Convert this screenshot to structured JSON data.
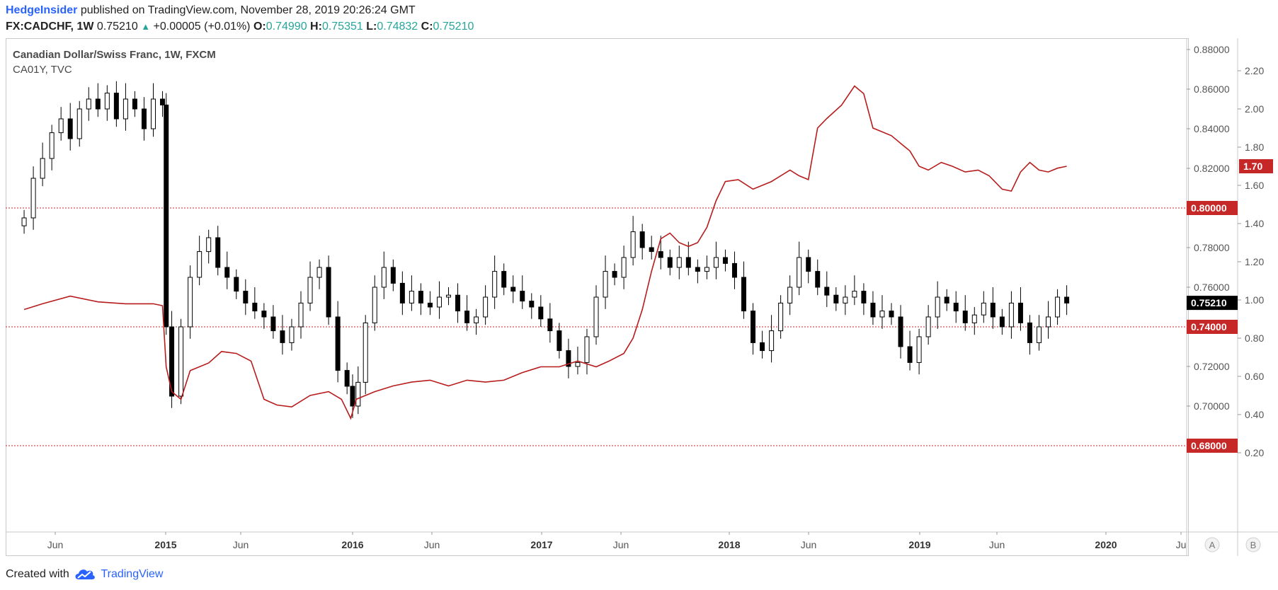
{
  "header": {
    "author": "HedgeInsider",
    "published": "published on TradingView.com, November 28, 2019 20:26:24 GMT",
    "symbol": "FX:CADCHF, 1W",
    "last": "0.75210",
    "change_arrow": "▲",
    "change": "+0.00005 (+0.01%)",
    "o_label": "O:",
    "o": "0.74990",
    "h_label": "H:",
    "h": "0.75351",
    "l_label": "L:",
    "l": "0.74832",
    "c_label": "C:",
    "c": "0.75210"
  },
  "chart_data": {
    "type": "line",
    "title": "Canadian Dollar/Swiss Franc, 1W, FXCM",
    "subtitle": "CA01Y, TVC",
    "x_ticks": [
      "Jun",
      "2015",
      "Jun",
      "2016",
      "Jun",
      "2017",
      "Jun",
      "2018",
      "Jun",
      "2019",
      "Jun",
      "2020",
      "Ju"
    ],
    "bold_x_ticks": [
      "2015",
      "2016",
      "2017",
      "2018",
      "2019",
      "2020"
    ],
    "scale_a": {
      "ticks": [
        "0.88000",
        "0.86000",
        "0.84000",
        "0.82000",
        "0.80000",
        "0.78000",
        "0.76000",
        "0.74000",
        "0.72000",
        "0.70000",
        "0.68000"
      ]
    },
    "scale_b": {
      "ticks": [
        "2.20",
        "2.00",
        "1.80",
        "1.60",
        "1.40",
        "1.20",
        "1.00",
        "0.80",
        "0.60",
        "0.40",
        "0.20"
      ]
    },
    "axis_buttons": [
      "A",
      "B"
    ],
    "price_labels": {
      "red_series": "1.70",
      "last_price": "0.75210"
    },
    "horizontal_lines": [
      {
        "label": "0.80000",
        "value": 0.8
      },
      {
        "label": "0.74000",
        "value": 0.74
      },
      {
        "label": "0.68000",
        "value": 0.68
      }
    ],
    "colors": {
      "candles": "#000000",
      "ca01y_line": "#b71c1c",
      "level_lines": "#c62828",
      "last_price_bg": "#000000"
    },
    "series": [
      {
        "name": "CA01Y, TVC",
        "type": "line",
        "x": [
          2014.25,
          2014.35,
          2014.5,
          2014.65,
          2014.8,
          2014.95,
          2015.0,
          2015.02,
          2015.05,
          2015.1,
          2015.15,
          2015.25,
          2015.32,
          2015.4,
          2015.48,
          2015.55,
          2015.62,
          2015.7,
          2015.8,
          2015.9,
          2015.97,
          2016.02,
          2016.05,
          2016.1,
          2016.15,
          2016.25,
          2016.35,
          2016.45,
          2016.55,
          2016.65,
          2016.75,
          2016.85,
          2016.95,
          2017.05,
          2017.15,
          2017.25,
          2017.35,
          2017.42,
          2017.5,
          2017.55,
          2017.6,
          2017.65,
          2017.7,
          2017.75,
          2017.8,
          2017.85,
          2017.9,
          2017.95,
          2018.0,
          2018.05,
          2018.12,
          2018.2,
          2018.3,
          2018.4,
          2018.45,
          2018.5,
          2018.55,
          2018.6,
          2018.68,
          2018.75,
          2018.8,
          2018.85,
          2018.9,
          2018.95,
          2019.0,
          2019.05,
          2019.1,
          2019.15,
          2019.22,
          2019.28,
          2019.35,
          2019.42,
          2019.48,
          2019.55,
          2019.6,
          2019.65,
          2019.7,
          2019.75,
          2019.8,
          2019.85,
          2019.9
        ],
        "y": [
          0.95,
          0.98,
          1.02,
          0.99,
          0.98,
          0.98,
          0.97,
          0.65,
          0.52,
          0.48,
          0.63,
          0.67,
          0.73,
          0.72,
          0.68,
          0.48,
          0.45,
          0.44,
          0.5,
          0.52,
          0.48,
          0.38,
          0.48,
          0.5,
          0.52,
          0.55,
          0.57,
          0.58,
          0.55,
          0.58,
          0.57,
          0.58,
          0.62,
          0.65,
          0.65,
          0.68,
          0.65,
          0.68,
          0.72,
          0.8,
          0.95,
          1.15,
          1.32,
          1.35,
          1.3,
          1.28,
          1.3,
          1.38,
          1.52,
          1.62,
          1.63,
          1.58,
          1.62,
          1.68,
          1.65,
          1.63,
          1.9,
          1.95,
          2.02,
          2.12,
          2.08,
          1.9,
          1.88,
          1.86,
          1.82,
          1.78,
          1.7,
          1.68,
          1.72,
          1.7,
          1.67,
          1.68,
          1.65,
          1.58,
          1.57,
          1.67,
          1.72,
          1.68,
          1.67,
          1.69,
          1.7
        ]
      },
      {
        "name": "FX:CADCHF, 1W",
        "type": "candlestick",
        "x": [
          2014.25,
          2014.3,
          2014.35,
          2014.4,
          2014.45,
          2014.5,
          2014.55,
          2014.6,
          2014.65,
          2014.7,
          2014.75,
          2014.8,
          2014.85,
          2014.9,
          2014.95,
          2015.0,
          2015.02,
          2015.05,
          2015.1,
          2015.15,
          2015.2,
          2015.25,
          2015.3,
          2015.35,
          2015.4,
          2015.45,
          2015.5,
          2015.55,
          2015.6,
          2015.65,
          2015.7,
          2015.75,
          2015.8,
          2015.85,
          2015.9,
          2015.95,
          2016.0,
          2016.03,
          2016.06,
          2016.1,
          2016.15,
          2016.2,
          2016.25,
          2016.3,
          2016.35,
          2016.4,
          2016.45,
          2016.5,
          2016.55,
          2016.6,
          2016.65,
          2016.7,
          2016.75,
          2016.8,
          2016.85,
          2016.9,
          2016.95,
          2017.0,
          2017.05,
          2017.1,
          2017.15,
          2017.2,
          2017.25,
          2017.3,
          2017.35,
          2017.4,
          2017.45,
          2017.5,
          2017.55,
          2017.6,
          2017.65,
          2017.7,
          2017.75,
          2017.8,
          2017.85,
          2017.9,
          2017.95,
          2018.0,
          2018.05,
          2018.1,
          2018.15,
          2018.2,
          2018.25,
          2018.3,
          2018.35,
          2018.4,
          2018.45,
          2018.5,
          2018.55,
          2018.6,
          2018.65,
          2018.7,
          2018.75,
          2018.8,
          2018.85,
          2018.9,
          2018.95,
          2019.0,
          2019.05,
          2019.1,
          2019.15,
          2019.2,
          2019.25,
          2019.3,
          2019.35,
          2019.4,
          2019.45,
          2019.5,
          2019.55,
          2019.6,
          2019.65,
          2019.7,
          2019.75,
          2019.8,
          2019.85,
          2019.9
        ],
        "close": [
          0.795,
          0.815,
          0.825,
          0.838,
          0.845,
          0.835,
          0.85,
          0.855,
          0.85,
          0.858,
          0.845,
          0.855,
          0.85,
          0.84,
          0.855,
          0.852,
          0.74,
          0.705,
          0.74,
          0.765,
          0.778,
          0.785,
          0.77,
          0.765,
          0.758,
          0.752,
          0.748,
          0.745,
          0.738,
          0.732,
          0.74,
          0.752,
          0.765,
          0.77,
          0.745,
          0.718,
          0.71,
          0.7,
          0.712,
          0.742,
          0.76,
          0.77,
          0.762,
          0.752,
          0.758,
          0.752,
          0.75,
          0.755,
          0.756,
          0.748,
          0.742,
          0.745,
          0.755,
          0.768,
          0.76,
          0.758,
          0.753,
          0.75,
          0.744,
          0.738,
          0.728,
          0.72,
          0.722,
          0.735,
          0.755,
          0.768,
          0.765,
          0.775,
          0.788,
          0.78,
          0.778,
          0.775,
          0.77,
          0.775,
          0.77,
          0.768,
          0.77,
          0.775,
          0.772,
          0.765,
          0.748,
          0.732,
          0.728,
          0.738,
          0.752,
          0.76,
          0.775,
          0.768,
          0.76,
          0.756,
          0.752,
          0.755,
          0.758,
          0.752,
          0.745,
          0.748,
          0.745,
          0.73,
          0.722,
          0.735,
          0.745,
          0.755,
          0.752,
          0.748,
          0.742,
          0.746,
          0.752,
          0.745,
          0.74,
          0.752,
          0.742,
          0.732,
          0.74,
          0.745,
          0.755,
          0.752
        ]
      }
    ]
  },
  "footer": {
    "created_with": "Created with",
    "brand": "TradingView"
  }
}
